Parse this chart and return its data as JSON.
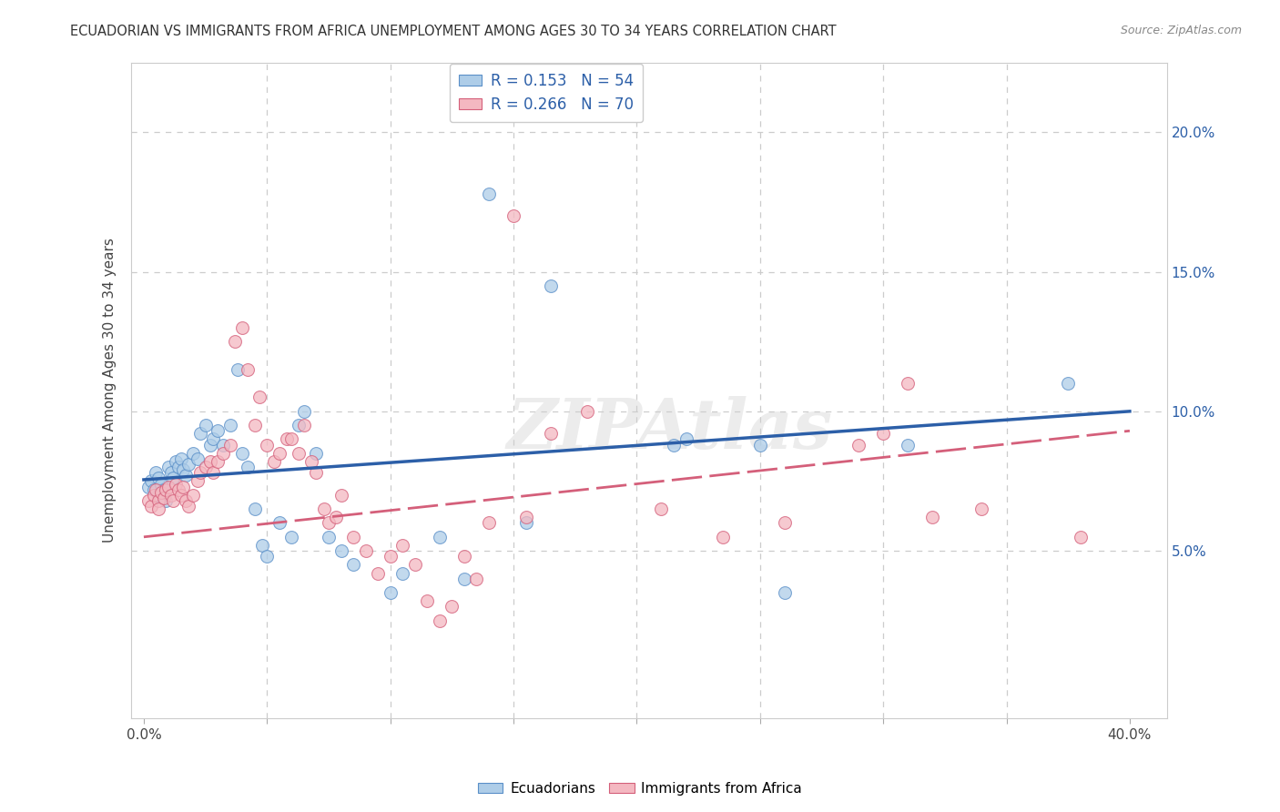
{
  "title": "ECUADORIAN VS IMMIGRANTS FROM AFRICA UNEMPLOYMENT AMONG AGES 30 TO 34 YEARS CORRELATION CHART",
  "source": "Source: ZipAtlas.com",
  "ylabel": "Unemployment Among Ages 30 to 34 years",
  "y_ticks": [
    0.05,
    0.1,
    0.15,
    0.2
  ],
  "y_tick_labels": [
    "5.0%",
    "10.0%",
    "15.0%",
    "20.0%"
  ],
  "xlim": [
    -0.005,
    0.415
  ],
  "ylim": [
    -0.01,
    0.225
  ],
  "legend1_label_r": "R = 0.153",
  "legend1_label_n": "N = 54",
  "legend2_label_r": "R = 0.266",
  "legend2_label_n": "N = 70",
  "legend1_fill": "#aecde8",
  "legend2_fill": "#f4b8c1",
  "line1_color": "#2c5fa8",
  "line2_color": "#d45f7a",
  "dot1_fill": "#aecde8",
  "dot1_edge": "#5a8fc8",
  "dot2_fill": "#f4b8c1",
  "dot2_edge": "#d45f7a",
  "watermark": "ZIPAtlas",
  "blue_scatter": [
    [
      0.002,
      0.073
    ],
    [
      0.003,
      0.075
    ],
    [
      0.004,
      0.072
    ],
    [
      0.005,
      0.078
    ],
    [
      0.006,
      0.07
    ],
    [
      0.006,
      0.076
    ],
    [
      0.007,
      0.074
    ],
    [
      0.008,
      0.072
    ],
    [
      0.009,
      0.068
    ],
    [
      0.01,
      0.08
    ],
    [
      0.011,
      0.078
    ],
    [
      0.012,
      0.076
    ],
    [
      0.013,
      0.082
    ],
    [
      0.014,
      0.08
    ],
    [
      0.015,
      0.083
    ],
    [
      0.016,
      0.079
    ],
    [
      0.017,
      0.077
    ],
    [
      0.018,
      0.081
    ],
    [
      0.02,
      0.085
    ],
    [
      0.022,
      0.083
    ],
    [
      0.023,
      0.092
    ],
    [
      0.025,
      0.095
    ],
    [
      0.027,
      0.088
    ],
    [
      0.028,
      0.09
    ],
    [
      0.03,
      0.093
    ],
    [
      0.032,
      0.088
    ],
    [
      0.035,
      0.095
    ],
    [
      0.038,
      0.115
    ],
    [
      0.04,
      0.085
    ],
    [
      0.042,
      0.08
    ],
    [
      0.045,
      0.065
    ],
    [
      0.048,
      0.052
    ],
    [
      0.05,
      0.048
    ],
    [
      0.055,
      0.06
    ],
    [
      0.06,
      0.055
    ],
    [
      0.063,
      0.095
    ],
    [
      0.065,
      0.1
    ],
    [
      0.07,
      0.085
    ],
    [
      0.075,
      0.055
    ],
    [
      0.08,
      0.05
    ],
    [
      0.085,
      0.045
    ],
    [
      0.1,
      0.035
    ],
    [
      0.105,
      0.042
    ],
    [
      0.12,
      0.055
    ],
    [
      0.13,
      0.04
    ],
    [
      0.14,
      0.178
    ],
    [
      0.155,
      0.06
    ],
    [
      0.165,
      0.145
    ],
    [
      0.215,
      0.088
    ],
    [
      0.22,
      0.09
    ],
    [
      0.25,
      0.088
    ],
    [
      0.26,
      0.035
    ],
    [
      0.31,
      0.088
    ],
    [
      0.375,
      0.11
    ]
  ],
  "pink_scatter": [
    [
      0.002,
      0.068
    ],
    [
      0.003,
      0.066
    ],
    [
      0.004,
      0.07
    ],
    [
      0.005,
      0.072
    ],
    [
      0.006,
      0.068
    ],
    [
      0.006,
      0.065
    ],
    [
      0.007,
      0.071
    ],
    [
      0.008,
      0.069
    ],
    [
      0.009,
      0.072
    ],
    [
      0.01,
      0.073
    ],
    [
      0.011,
      0.07
    ],
    [
      0.012,
      0.068
    ],
    [
      0.013,
      0.074
    ],
    [
      0.014,
      0.072
    ],
    [
      0.015,
      0.07
    ],
    [
      0.016,
      0.073
    ],
    [
      0.017,
      0.068
    ],
    [
      0.018,
      0.066
    ],
    [
      0.02,
      0.07
    ],
    [
      0.022,
      0.075
    ],
    [
      0.023,
      0.078
    ],
    [
      0.025,
      0.08
    ],
    [
      0.027,
      0.082
    ],
    [
      0.028,
      0.078
    ],
    [
      0.03,
      0.082
    ],
    [
      0.032,
      0.085
    ],
    [
      0.035,
      0.088
    ],
    [
      0.037,
      0.125
    ],
    [
      0.04,
      0.13
    ],
    [
      0.042,
      0.115
    ],
    [
      0.045,
      0.095
    ],
    [
      0.047,
      0.105
    ],
    [
      0.05,
      0.088
    ],
    [
      0.053,
      0.082
    ],
    [
      0.055,
      0.085
    ],
    [
      0.058,
      0.09
    ],
    [
      0.06,
      0.09
    ],
    [
      0.063,
      0.085
    ],
    [
      0.065,
      0.095
    ],
    [
      0.068,
      0.082
    ],
    [
      0.07,
      0.078
    ],
    [
      0.073,
      0.065
    ],
    [
      0.075,
      0.06
    ],
    [
      0.078,
      0.062
    ],
    [
      0.08,
      0.07
    ],
    [
      0.085,
      0.055
    ],
    [
      0.09,
      0.05
    ],
    [
      0.095,
      0.042
    ],
    [
      0.1,
      0.048
    ],
    [
      0.105,
      0.052
    ],
    [
      0.11,
      0.045
    ],
    [
      0.115,
      0.032
    ],
    [
      0.12,
      0.025
    ],
    [
      0.125,
      0.03
    ],
    [
      0.13,
      0.048
    ],
    [
      0.135,
      0.04
    ],
    [
      0.14,
      0.06
    ],
    [
      0.15,
      0.17
    ],
    [
      0.155,
      0.062
    ],
    [
      0.165,
      0.092
    ],
    [
      0.18,
      0.1
    ],
    [
      0.21,
      0.065
    ],
    [
      0.235,
      0.055
    ],
    [
      0.26,
      0.06
    ],
    [
      0.29,
      0.088
    ],
    [
      0.3,
      0.092
    ],
    [
      0.31,
      0.11
    ],
    [
      0.32,
      0.062
    ],
    [
      0.34,
      0.065
    ],
    [
      0.38,
      0.055
    ]
  ],
  "blue_line_x0": 0.0,
  "blue_line_y0": 0.0755,
  "blue_line_x1": 0.4,
  "blue_line_y1": 0.1,
  "pink_line_x0": 0.0,
  "pink_line_y0": 0.055,
  "pink_line_x1": 0.4,
  "pink_line_y1": 0.093
}
